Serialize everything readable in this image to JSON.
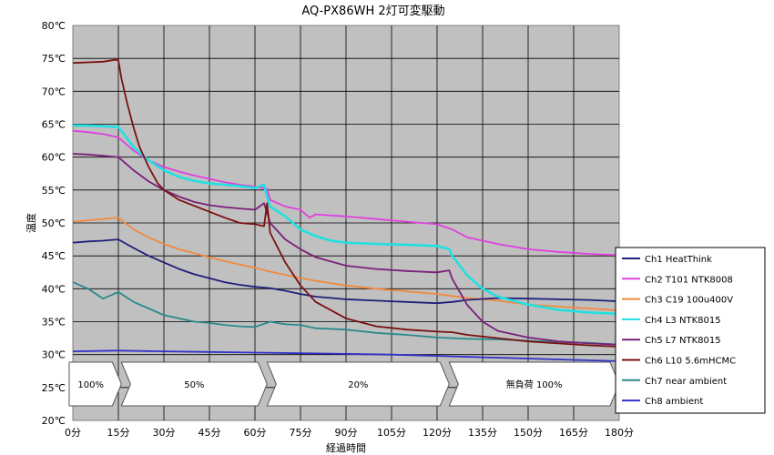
{
  "chart_data": {
    "type": "line",
    "title": "AQ-PX86WH 2灯可変駆動",
    "xlabel": "経過時間",
    "ylabel": "温度",
    "xlim": [
      0,
      180
    ],
    "ylim": [
      20,
      80
    ],
    "grid": true,
    "legend_position": "right",
    "x_ticks": [
      0,
      15,
      30,
      45,
      60,
      75,
      90,
      105,
      120,
      135,
      150,
      165,
      180
    ],
    "x_tick_labels": [
      "0分",
      "15分",
      "30分",
      "45分",
      "60分",
      "75分",
      "90分",
      "105分",
      "120分",
      "135分",
      "150分",
      "165分",
      "180分"
    ],
    "y_ticks": [
      20,
      25,
      30,
      35,
      40,
      45,
      50,
      55,
      60,
      65,
      70,
      75,
      80
    ],
    "y_tick_labels": [
      "20℃",
      "25℃",
      "30℃",
      "35℃",
      "40℃",
      "45℃",
      "50℃",
      "55℃",
      "60℃",
      "65℃",
      "70℃",
      "75℃",
      "80℃"
    ],
    "phases": [
      {
        "label": "100%",
        "start": 0,
        "end": 16
      },
      {
        "label": "50%",
        "start": 16,
        "end": 64
      },
      {
        "label": "20%",
        "start": 64,
        "end": 124
      },
      {
        "label": "無負荷  100%",
        "start": 124,
        "end": 180
      }
    ],
    "series": [
      {
        "name": "Ch1  HeatThink",
        "color": "#1f1f7a",
        "x": [
          0,
          5,
          10,
          15,
          20,
          25,
          30,
          35,
          40,
          45,
          50,
          55,
          60,
          65,
          70,
          75,
          80,
          90,
          100,
          110,
          120,
          125,
          130,
          140,
          150,
          160,
          170,
          180
        ],
        "y": [
          47.0,
          47.2,
          47.3,
          47.5,
          46.2,
          45.0,
          44.0,
          43.0,
          42.2,
          41.6,
          41.0,
          40.6,
          40.3,
          40.1,
          39.7,
          39.2,
          38.8,
          38.4,
          38.2,
          38.0,
          37.8,
          38.0,
          38.3,
          38.6,
          38.5,
          38.4,
          38.3,
          38.1
        ]
      },
      {
        "name": "Ch2  T101  NTK8008",
        "color": "#e040e0",
        "x": [
          0,
          5,
          10,
          15,
          20,
          25,
          30,
          35,
          40,
          45,
          50,
          55,
          60,
          64,
          65,
          70,
          75,
          78,
          80,
          90,
          100,
          110,
          120,
          125,
          130,
          140,
          150,
          160,
          170,
          180
        ],
        "y": [
          64.0,
          63.8,
          63.5,
          63.0,
          61.0,
          59.5,
          58.5,
          57.8,
          57.2,
          56.7,
          56.2,
          55.8,
          55.5,
          55.2,
          53.5,
          52.5,
          52.0,
          50.8,
          51.3,
          51.0,
          50.6,
          50.2,
          49.8,
          49.0,
          47.8,
          46.8,
          46.0,
          45.6,
          45.3,
          45.1
        ]
      },
      {
        "name": "Ch3  C19  100u400V",
        "color": "#f08a40",
        "x": [
          0,
          5,
          10,
          15,
          20,
          25,
          30,
          35,
          40,
          45,
          50,
          55,
          60,
          65,
          70,
          80,
          90,
          100,
          110,
          120,
          125,
          130,
          140,
          150,
          160,
          170,
          180
        ],
        "y": [
          50.2,
          50.4,
          50.6,
          50.8,
          49.0,
          47.8,
          46.8,
          46.0,
          45.4,
          44.8,
          44.2,
          43.7,
          43.2,
          42.6,
          42.1,
          41.2,
          40.5,
          40.0,
          39.6,
          39.2,
          38.9,
          38.6,
          38.2,
          37.6,
          37.3,
          37.0,
          36.7
        ]
      },
      {
        "name": "Ch4  L3  NTK8015",
        "color": "#20e0e0",
        "x": [
          0,
          5,
          10,
          15,
          20,
          25,
          30,
          35,
          40,
          45,
          50,
          55,
          60,
          63,
          64,
          65,
          70,
          75,
          80,
          85,
          90,
          100,
          110,
          120,
          124,
          125,
          130,
          135,
          140,
          145,
          150,
          160,
          170,
          180
        ],
        "y": [
          64.8,
          64.8,
          64.7,
          64.6,
          61.5,
          59.5,
          58.0,
          57.0,
          56.4,
          56.0,
          55.8,
          55.6,
          55.3,
          55.8,
          54.0,
          52.5,
          51.0,
          49.0,
          48.0,
          47.3,
          47.0,
          46.8,
          46.7,
          46.5,
          46.0,
          45.0,
          42.0,
          40.0,
          38.8,
          38.2,
          37.6,
          36.8,
          36.4,
          36.2
        ]
      },
      {
        "name": "Ch5  L7  NTK8015",
        "color": "#7a1f7a",
        "x": [
          0,
          5,
          10,
          15,
          20,
          25,
          30,
          35,
          40,
          45,
          50,
          55,
          60,
          63,
          64,
          65,
          70,
          75,
          80,
          90,
          100,
          110,
          120,
          124,
          125,
          130,
          135,
          140,
          150,
          160,
          170,
          180
        ],
        "y": [
          60.5,
          60.4,
          60.2,
          60.0,
          58.0,
          56.3,
          55.0,
          54.0,
          53.2,
          52.7,
          52.4,
          52.2,
          52.0,
          53.0,
          51.5,
          50.0,
          47.5,
          46.0,
          44.8,
          43.5,
          43.0,
          42.7,
          42.5,
          42.8,
          41.5,
          37.5,
          35.0,
          33.6,
          32.6,
          32.0,
          31.7,
          31.5
        ]
      },
      {
        "name": "Ch6  L10  5.6mHCMC",
        "color": "#7a1010",
        "x": [
          0,
          5,
          10,
          14,
          15,
          16,
          18,
          20,
          22,
          25,
          28,
          30,
          35,
          40,
          45,
          50,
          55,
          60,
          63,
          64,
          65,
          70,
          75,
          80,
          90,
          100,
          110,
          120,
          125,
          130,
          140,
          150,
          160,
          170,
          180
        ],
        "y": [
          74.3,
          74.4,
          74.5,
          74.8,
          74.7,
          72.0,
          68.0,
          64.5,
          61.5,
          58.5,
          56.0,
          55.0,
          53.5,
          52.6,
          51.7,
          50.8,
          50.0,
          49.8,
          49.5,
          53.0,
          48.5,
          44.0,
          40.5,
          38.0,
          35.5,
          34.3,
          33.8,
          33.5,
          33.4,
          33.0,
          32.5,
          32.0,
          31.7,
          31.4,
          31.2
        ]
      },
      {
        "name": "Ch7  near ambient",
        "color": "#2a8a8a",
        "x": [
          0,
          5,
          10,
          15,
          20,
          25,
          30,
          35,
          40,
          45,
          50,
          55,
          60,
          65,
          70,
          75,
          80,
          90,
          100,
          110,
          120,
          130,
          140,
          150,
          160,
          170,
          180
        ],
        "y": [
          41.0,
          40.0,
          38.5,
          39.5,
          38.0,
          37.0,
          36.0,
          35.5,
          35.0,
          34.8,
          34.5,
          34.3,
          34.2,
          35.0,
          34.6,
          34.5,
          34.0,
          33.8,
          33.3,
          33.0,
          32.6,
          32.4,
          32.3,
          32.1,
          31.9,
          31.8,
          31.5
        ]
      },
      {
        "name": "Ch8  ambient",
        "color": "#3030c8",
        "x": [
          0,
          15,
          30,
          45,
          60,
          75,
          90,
          105,
          120,
          135,
          150,
          165,
          180
        ],
        "y": [
          30.5,
          30.6,
          30.5,
          30.4,
          30.3,
          30.2,
          30.1,
          30.0,
          29.8,
          29.6,
          29.4,
          29.2,
          29.0
        ]
      }
    ]
  }
}
